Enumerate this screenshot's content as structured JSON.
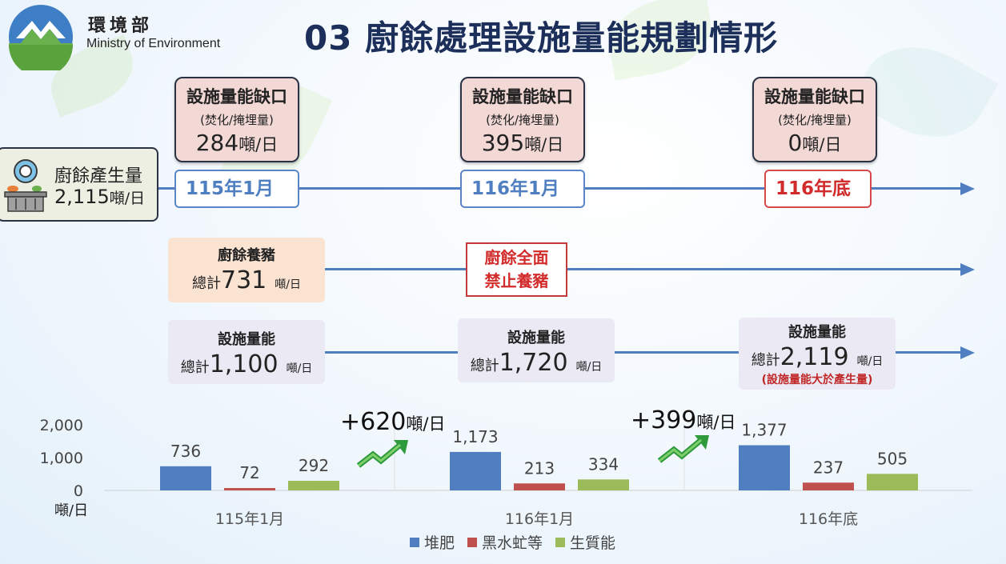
{
  "header": {
    "org_name": "環境部",
    "org_name_en": "Ministry of Environment",
    "title": "03 廚餘處理設施量能規劃情形"
  },
  "generation": {
    "title": "廚餘產生量",
    "value": "2,115",
    "unit": "噸/日"
  },
  "timeline": [
    {
      "date": "115年1月",
      "gap_title": "設施量能缺口",
      "gap_sub": "(焚化/掩埋量)",
      "gap_value": "284",
      "gap_unit": "噸/日"
    },
    {
      "date": "116年1月",
      "gap_title": "設施量能缺口",
      "gap_sub": "(焚化/掩埋量)",
      "gap_value": "395",
      "gap_unit": "噸/日"
    },
    {
      "date": "116年底",
      "gap_title": "設施量能缺口",
      "gap_sub": "(焚化/掩埋量)",
      "gap_value": "0",
      "gap_unit": "噸/日"
    }
  ],
  "pig_feeding": {
    "title": "廚餘養豬",
    "prefix": "總計",
    "value": "731",
    "unit": "噸/日"
  },
  "ban_notice": {
    "line1": "廚餘全面",
    "line2": "禁止養豬"
  },
  "capacity": [
    {
      "title": "設施量能",
      "prefix": "總計",
      "value": "1,100",
      "unit": "噸/日",
      "note": ""
    },
    {
      "title": "設施量能",
      "prefix": "總計",
      "value": "1,720",
      "unit": "噸/日",
      "note": ""
    },
    {
      "title": "設施量能",
      "prefix": "總計",
      "value": "2,119",
      "unit": "噸/日",
      "note": "(設施量能大於產生量)"
    }
  ],
  "gains": [
    {
      "value": "+620",
      "unit": "噸/日"
    },
    {
      "value": "+399",
      "unit": "噸/日"
    }
  ],
  "colors": {
    "timeline": "#4f7fc0",
    "highlight_red": "#d22b2b",
    "title_navy": "#1c2f5a"
  },
  "chart_data": {
    "type": "bar",
    "categories": [
      "115年1月",
      "116年1月",
      "116年底"
    ],
    "series": [
      {
        "name": "堆肥",
        "color": "#4f7fc0",
        "values": [
          736,
          1173,
          1377
        ]
      },
      {
        "name": "黑水虻等",
        "color": "#c0504d",
        "values": [
          72,
          213,
          237
        ]
      },
      {
        "name": "生質能",
        "color": "#9bbb59",
        "values": [
          292,
          334,
          505
        ]
      }
    ],
    "data_labels": [
      [
        "736",
        "1,173",
        "1,377"
      ],
      [
        "72",
        "213",
        "237"
      ],
      [
        "292",
        "334",
        "505"
      ]
    ],
    "y_ticks": [
      {
        "value": 0,
        "label": "0"
      },
      {
        "value": 1000,
        "label": "1,000"
      },
      {
        "value": 2000,
        "label": "2,000"
      }
    ],
    "ylabel": "噸/日",
    "ylim": [
      0,
      2000
    ],
    "legend_position": "bottom",
    "grid": false
  }
}
